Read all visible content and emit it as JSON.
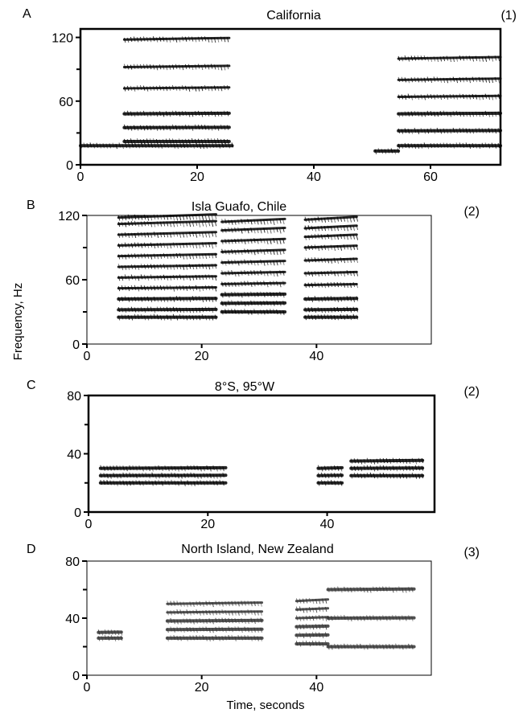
{
  "figure": {
    "ylabel": "Frequency, Hz",
    "xlabel": "Time, seconds"
  },
  "chart_data": [
    {
      "type": "heatmap",
      "panel": "A",
      "title": "California",
      "note": "(1)",
      "x_ticks": [
        0,
        20,
        40,
        60
      ],
      "y_ticks": [
        0,
        60,
        120
      ],
      "xlim": [
        0,
        72
      ],
      "ylim": [
        0,
        128
      ],
      "call_segments": [
        {
          "x_start": 0.0,
          "x_end": 26.0,
          "harmonics_hz": [
            18
          ]
        },
        {
          "x_start": 7.5,
          "x_end": 25.5,
          "harmonics_hz": [
            22,
            35,
            48,
            72,
            92,
            118
          ]
        },
        {
          "x_start": 50.5,
          "x_end": 54.5,
          "harmonics_hz": [
            13
          ]
        },
        {
          "x_start": 54.5,
          "x_end": 72.0,
          "harmonics_hz": [
            18,
            32,
            48,
            64,
            80,
            100
          ]
        }
      ]
    },
    {
      "type": "heatmap",
      "panel": "B",
      "title": "Isla Guafo, Chile",
      "note": "(2)",
      "x_ticks": [
        0,
        20,
        40
      ],
      "y_ticks": [
        0,
        60,
        120
      ],
      "xlim": [
        0,
        60
      ],
      "ylim": [
        0,
        120
      ],
      "call_segments": [
        {
          "x_start": 5.5,
          "x_end": 22.5,
          "harmonics_hz": [
            25,
            32,
            42,
            52,
            62,
            72,
            82,
            92,
            102,
            112,
            118
          ]
        },
        {
          "x_start": 23.5,
          "x_end": 34.5,
          "harmonics_hz": [
            30,
            38,
            46,
            56,
            66,
            76,
            86,
            96,
            106,
            114
          ]
        },
        {
          "x_start": 38.0,
          "x_end": 47.0,
          "harmonics_hz": [
            25,
            32,
            42,
            55,
            66,
            78,
            90,
            100,
            108,
            116
          ]
        }
      ]
    },
    {
      "type": "heatmap",
      "panel": "C",
      "title": "8°S, 95°W",
      "note": "(2)",
      "x_ticks": [
        0,
        20,
        40
      ],
      "y_ticks": [
        0,
        40,
        80
      ],
      "xlim": [
        0,
        58
      ],
      "ylim": [
        0,
        80
      ],
      "call_segments": [
        {
          "x_start": 2.0,
          "x_end": 23.0,
          "harmonics_hz": [
            20,
            25,
            30
          ]
        },
        {
          "x_start": 38.5,
          "x_end": 42.5,
          "harmonics_hz": [
            20,
            25,
            30
          ]
        },
        {
          "x_start": 44.0,
          "x_end": 56.0,
          "harmonics_hz": [
            25,
            30,
            35
          ]
        }
      ]
    },
    {
      "type": "heatmap",
      "panel": "D",
      "title": "North Island, New Zealand",
      "note": "(3)",
      "x_ticks": [
        0,
        20,
        40
      ],
      "y_ticks": [
        0,
        40,
        80
      ],
      "xlim": [
        0,
        60
      ],
      "ylim": [
        0,
        80
      ],
      "call_segments": [
        {
          "x_start": 2.0,
          "x_end": 6.0,
          "harmonics_hz": [
            26,
            30
          ]
        },
        {
          "x_start": 14.0,
          "x_end": 30.5,
          "harmonics_hz": [
            26,
            32,
            38,
            44,
            50
          ]
        },
        {
          "x_start": 36.5,
          "x_end": 42.0,
          "harmonics_hz": [
            22,
            28,
            34,
            40,
            46,
            52
          ]
        },
        {
          "x_start": 42.0,
          "x_end": 57.0,
          "harmonics_hz": [
            20,
            40,
            60
          ]
        }
      ]
    }
  ]
}
